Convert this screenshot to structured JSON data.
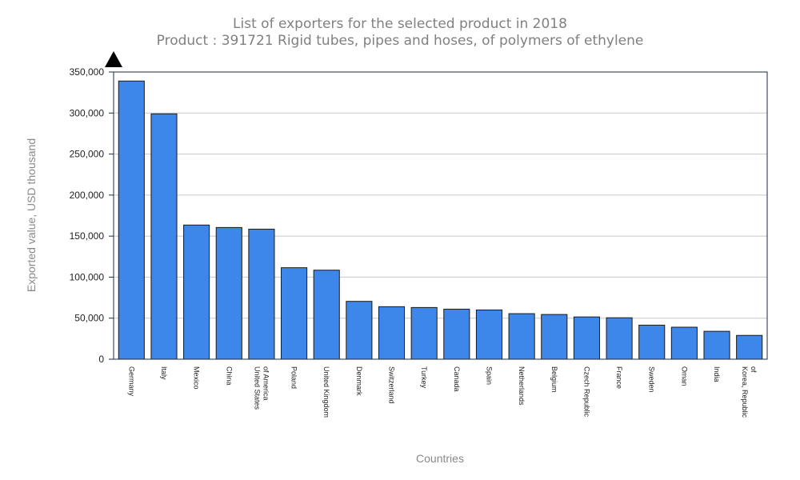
{
  "chart_data": {
    "type": "bar",
    "title": "List of exporters for the selected product in 2018",
    "subtitle": "Product : 391721 Rigid tubes, pipes and hoses, of polymers of ethylene",
    "xlabel": "Countries",
    "ylabel": "Exported value, USD thousand",
    "ylim": [
      0,
      350000
    ],
    "yticks": [
      0,
      50000,
      100000,
      150000,
      200000,
      250000,
      300000,
      350000
    ],
    "ytick_labels": [
      "0",
      "50,000",
      "100,000",
      "150,000",
      "200,000",
      "250,000",
      "300,000",
      "350,000"
    ],
    "grid": true,
    "categories": [
      [
        "Germany"
      ],
      [
        "Italy"
      ],
      [
        "Mexico"
      ],
      [
        "China"
      ],
      [
        "United States",
        "of America"
      ],
      [
        "Poland"
      ],
      [
        "United Kingdom"
      ],
      [
        "Denmark"
      ],
      [
        "Switzerland"
      ],
      [
        "Turkey"
      ],
      [
        "Canada"
      ],
      [
        "Spain"
      ],
      [
        "Netherlands"
      ],
      [
        "Belgium"
      ],
      [
        "Czech Republic"
      ],
      [
        "France"
      ],
      [
        "Sweden"
      ],
      [
        "Oman"
      ],
      [
        "India"
      ],
      [
        "Korea, Republic",
        "of"
      ]
    ],
    "values": [
      339000,
      299000,
      163500,
      160500,
      158500,
      111500,
      108500,
      70500,
      64000,
      63000,
      61000,
      60000,
      55500,
      54500,
      51500,
      50500,
      41500,
      39000,
      34000,
      29000
    ],
    "bar_color": "#3d86ea"
  }
}
